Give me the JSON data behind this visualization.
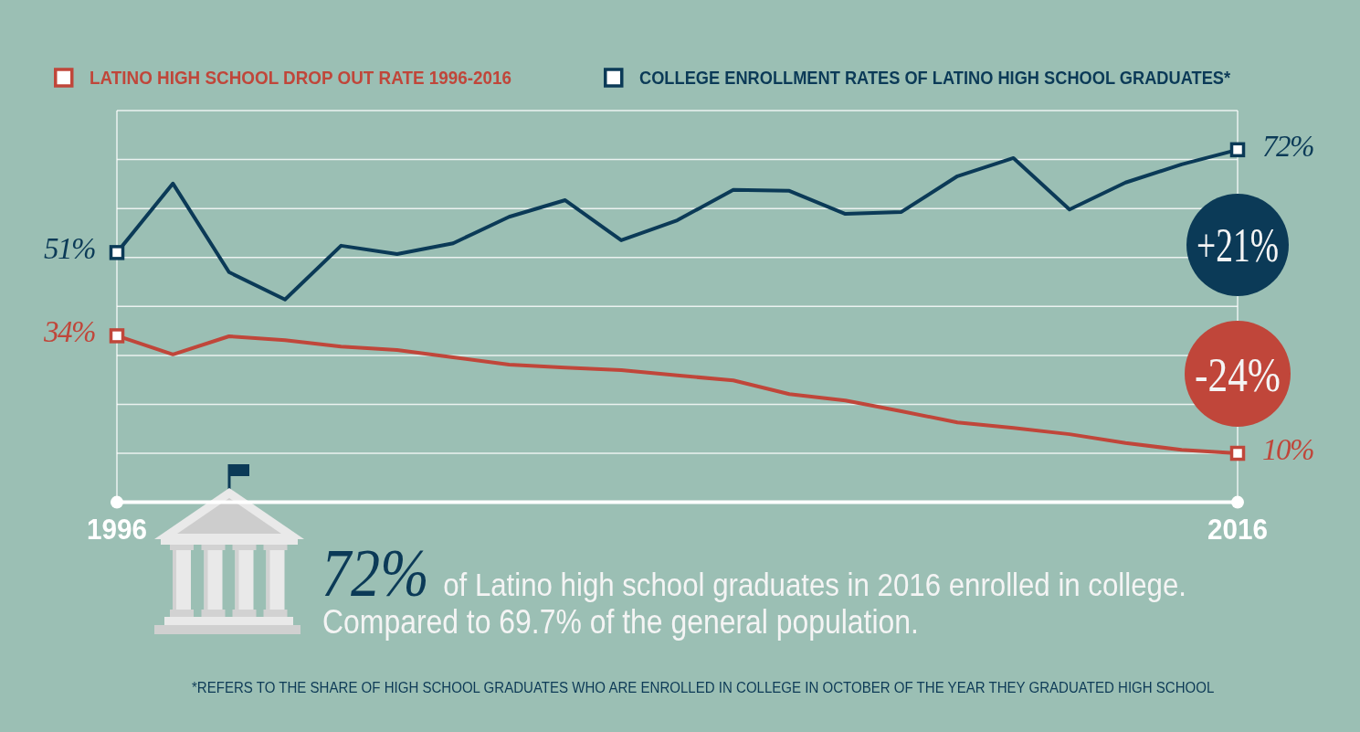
{
  "chart_data": {
    "type": "line",
    "x": [
      1996,
      1997,
      1998,
      1999,
      2000,
      2001,
      2002,
      2003,
      2004,
      2005,
      2006,
      2007,
      2008,
      2009,
      2010,
      2011,
      2012,
      2013,
      2014,
      2015,
      2016
    ],
    "xlim": [
      1996,
      2016
    ],
    "xticks": [
      1996,
      2016
    ],
    "ylim": [
      0,
      80
    ],
    "yticks": [
      {
        "value": 10,
        "label": null
      },
      {
        "value": 20,
        "label": null
      },
      {
        "value": 30,
        "label": null
      },
      {
        "value": 40,
        "label": null
      },
      {
        "value": 50,
        "label": null
      },
      {
        "value": 60,
        "label": null
      },
      {
        "value": 70,
        "label": null
      },
      {
        "value": 80,
        "label": null
      }
    ],
    "tick_labels": "x",
    "grid": true,
    "legend": "top",
    "series": [
      {
        "name": "LATINO HIGH SCHOOL DROP OUT RATE 1996-2016",
        "color": "#c0463a",
        "values": [
          34,
          30.2,
          33.9,
          33.1,
          31.8,
          31.1,
          29.6,
          28.1,
          27.5,
          27.0,
          25.9,
          24.9,
          22.1,
          20.8,
          18.6,
          16.3,
          15.2,
          13.9,
          12.1,
          10.7,
          10
        ],
        "value_labels": [
          "34%",
          null,
          null,
          null,
          null,
          null,
          null,
          null,
          null,
          null,
          null,
          null,
          null,
          null,
          null,
          null,
          null,
          null,
          null,
          null,
          "10%"
        ]
      },
      {
        "name": "COLLEGE ENROLLMENT RATES OF LATINO HIGH SCHOOL GRADUATES*",
        "color": "#0b3a57",
        "values": [
          51,
          65.1,
          47.0,
          41.4,
          52.4,
          50.7,
          52.9,
          58.3,
          61.7,
          53.5,
          57.6,
          63.8,
          63.6,
          58.9,
          59.3,
          66.6,
          70.3,
          59.8,
          65.3,
          69.0,
          72
        ],
        "value_labels": [
          "51%",
          null,
          null,
          null,
          null,
          null,
          null,
          null,
          null,
          null,
          null,
          null,
          null,
          null,
          null,
          null,
          null,
          null,
          null,
          null,
          "72%"
        ]
      }
    ],
    "annotations": [
      "+21%",
      "-24%",
      "72% of Latino high school graduates in 2016 enrolled in college.",
      "Compared to 69.7% of the general population.",
      "*REFERS TO THE SHARE OF HIGH SCHOOL GRADUATES WHO ARE ENROLLED IN COLLEGE IN OCTOBER OF THE YEAR THEY GRADUATED HIGH SCHOOL"
    ]
  }
}
